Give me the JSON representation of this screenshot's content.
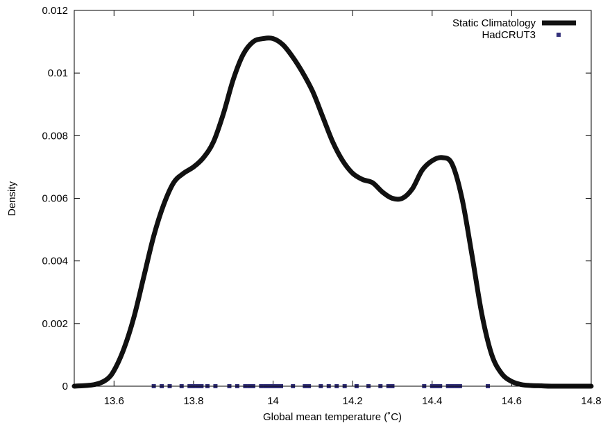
{
  "chart_data": {
    "type": "line",
    "title": "",
    "xlabel": "Global mean temperature (˚C)",
    "ylabel": "Density",
    "xlim": [
      13.5,
      14.8
    ],
    "ylim": [
      0,
      0.012
    ],
    "xticks": [
      13.6,
      13.8,
      14.0,
      14.2,
      14.4,
      14.6,
      14.8
    ],
    "xtick_labels": [
      "13.6",
      "13.8",
      "14",
      "14.2",
      "14.4",
      "14.6",
      "14.8"
    ],
    "yticks": [
      0,
      0.002,
      0.004,
      0.006,
      0.008,
      0.01,
      0.012
    ],
    "ytick_labels": [
      "0",
      "0.002",
      "0.004",
      "0.006",
      "0.008",
      "0.01",
      "0.012"
    ],
    "grid": false,
    "legend_position": "top-right",
    "series": [
      {
        "name": "Static Climatology",
        "kind": "line",
        "color": "#111111",
        "x": [
          13.5,
          13.55,
          13.58,
          13.6,
          13.625,
          13.65,
          13.675,
          13.7,
          13.725,
          13.75,
          13.775,
          13.8,
          13.825,
          13.85,
          13.875,
          13.9,
          13.925,
          13.95,
          13.975,
          14.0,
          14.025,
          14.05,
          14.075,
          14.1,
          14.125,
          14.15,
          14.175,
          14.2,
          14.225,
          14.25,
          14.275,
          14.3,
          14.325,
          14.35,
          14.375,
          14.4,
          14.425,
          14.45,
          14.475,
          14.5,
          14.525,
          14.55,
          14.575,
          14.6,
          14.625,
          14.65,
          14.675,
          14.7,
          14.75,
          14.8
        ],
        "y": [
          0.0,
          5e-05,
          0.0002,
          0.0005,
          0.0012,
          0.0022,
          0.0035,
          0.0048,
          0.0058,
          0.0065,
          0.0068,
          0.007,
          0.0073,
          0.0078,
          0.0087,
          0.0098,
          0.0106,
          0.011,
          0.0111,
          0.0111,
          0.0109,
          0.0105,
          0.01,
          0.0094,
          0.0086,
          0.0078,
          0.0072,
          0.0068,
          0.0066,
          0.0065,
          0.0062,
          0.006,
          0.006,
          0.0063,
          0.0069,
          0.0072,
          0.0073,
          0.0071,
          0.006,
          0.0042,
          0.0023,
          0.001,
          0.0004,
          0.00015,
          5e-05,
          2e-05,
          1e-05,
          0.0,
          0.0,
          0.0
        ]
      },
      {
        "name": "HadCRUT3",
        "kind": "points",
        "color": "#33307a",
        "x": [
          13.7,
          13.72,
          13.74,
          13.77,
          13.79,
          13.8,
          13.81,
          13.82,
          13.835,
          13.855,
          13.89,
          13.91,
          13.93,
          13.94,
          13.95,
          13.97,
          13.98,
          13.985,
          13.99,
          13.995,
          14.0,
          14.005,
          14.01,
          14.02,
          14.05,
          14.08,
          14.09,
          14.12,
          14.14,
          14.16,
          14.18,
          14.21,
          14.24,
          14.27,
          14.29,
          14.3,
          14.38,
          14.4,
          14.41,
          14.42,
          14.44,
          14.45,
          14.46,
          14.47,
          14.54
        ],
        "y": [
          0,
          0,
          0,
          0,
          0,
          0,
          0,
          0,
          0,
          0,
          0,
          0,
          0,
          0,
          0,
          0,
          0,
          0,
          0,
          0,
          0,
          0,
          0,
          0,
          0,
          0,
          0,
          0,
          0,
          0,
          0,
          0,
          0,
          0,
          0,
          0,
          0,
          0,
          0,
          0,
          0,
          0,
          0,
          0,
          0
        ]
      }
    ]
  }
}
